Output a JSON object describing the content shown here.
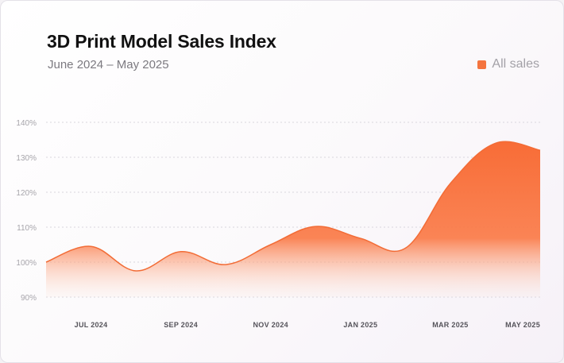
{
  "chart_data": {
    "type": "area",
    "title": "3D Print Model Sales Index",
    "subtitle": "June 2024 – May 2025",
    "legend": [
      {
        "name": "All sales",
        "color": "#f4743f"
      }
    ],
    "legend_position": "top-right",
    "ylim": [
      90,
      140
    ],
    "y_ticks": [
      90,
      100,
      110,
      120,
      130,
      140
    ],
    "y_tick_labels": [
      "90%",
      "100%",
      "110%",
      "120%",
      "130%",
      "140%"
    ],
    "x_tick_labels": [
      "JUL 2024",
      "SEP 2024",
      "NOV 2024",
      "JAN 2025",
      "MAR 2025",
      "MAY 2025"
    ],
    "x_tick_positions": [
      1,
      3,
      5,
      7,
      9,
      11
    ],
    "grid": true,
    "series": [
      {
        "name": "All sales",
        "color": "#f4743f",
        "x": [
          0,
          1,
          2,
          3,
          4,
          5,
          6,
          7,
          8,
          9,
          10,
          11
        ],
        "values": [
          100,
          104.5,
          97.5,
          103,
          99.3,
          105,
          110.2,
          106.8,
          104,
          122.5,
          134,
          132
        ]
      }
    ]
  }
}
